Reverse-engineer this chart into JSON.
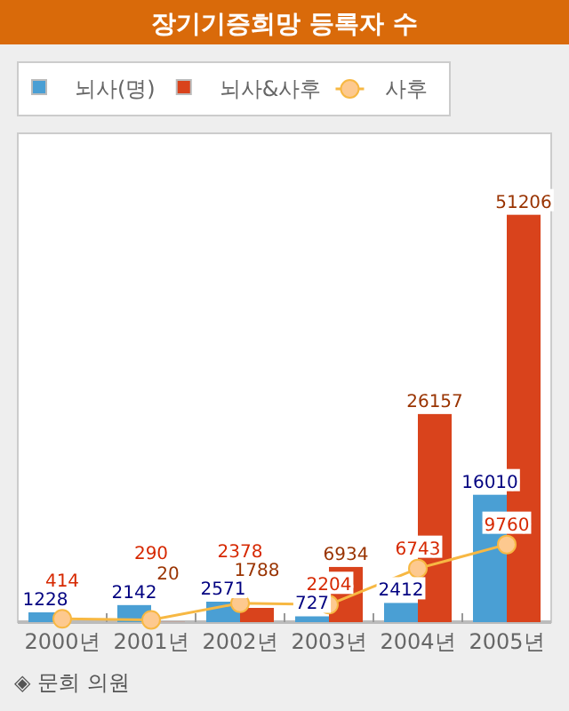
{
  "chart_data": {
    "type": "bar",
    "title": "장기기증희망 등록자 수",
    "categories": [
      "2000년",
      "2001년",
      "2002년",
      "2003년",
      "2004년",
      "2005년"
    ],
    "series": [
      {
        "name": "뇌사(명)",
        "color": "#4a9fd4",
        "values": [
          1228,
          2142,
          2571,
          727,
          2412,
          16010
        ]
      },
      {
        "name": "뇌사&사후",
        "color": "#d9431c",
        "values": [
          null,
          20,
          1788,
          6934,
          26157,
          51206
        ]
      },
      {
        "name": "사후",
        "type": "line",
        "color": "#f7b843",
        "marker": "circle",
        "values": [
          414,
          290,
          2378,
          2204,
          6743,
          9760
        ]
      }
    ],
    "data_labels": true,
    "legend": "top left",
    "grid": false,
    "annotations": [
      "◈ 문희 의원"
    ]
  }
}
